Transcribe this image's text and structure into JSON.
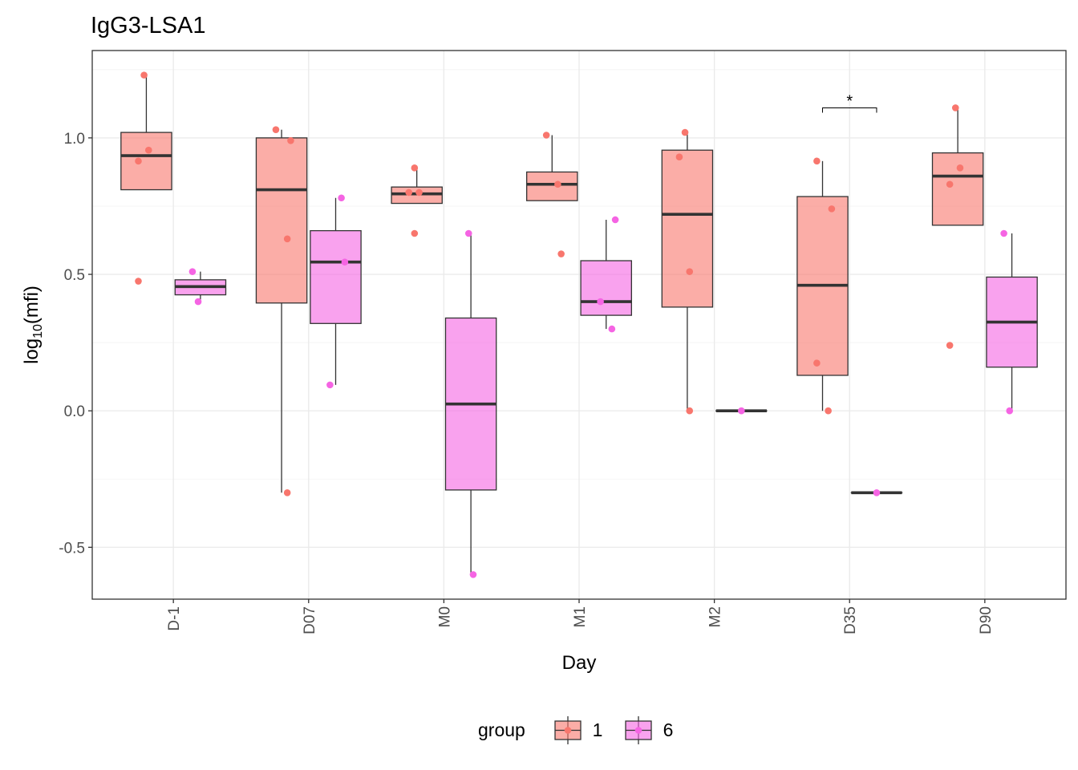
{
  "chart_data": {
    "type": "box",
    "title": "IgG3-LSA1",
    "xlabel": "Day",
    "ylabel": {
      "base": "log",
      "sub": "10",
      "arg": "(mfi)"
    },
    "categories": [
      "D-1",
      "D07",
      "M0",
      "M1",
      "M2",
      "D35",
      "D90"
    ],
    "y_ticks": [
      "-0.5",
      "0.0",
      "0.5",
      "1.0"
    ],
    "ylim": [
      -0.69,
      1.32
    ],
    "grid": true,
    "legend": {
      "title": "group",
      "position": "bottom"
    },
    "series": [
      {
        "name": "1",
        "fill": "#F8766D",
        "boxes": [
          {
            "category": "D-1",
            "lower_whisker": 0.81,
            "q1": 0.81,
            "median": 0.935,
            "q3": 1.02,
            "upper_whisker": 1.23,
            "points": [
              0.475,
              1.23,
              0.955,
              0.915
            ]
          },
          {
            "category": "D07",
            "lower_whisker": -0.3,
            "q1": 0.395,
            "median": 0.81,
            "q3": 1.0,
            "upper_whisker": 1.03,
            "points": [
              -0.3,
              0.99,
              1.03,
              0.63
            ]
          },
          {
            "category": "M0",
            "lower_whisker": 0.76,
            "q1": 0.76,
            "median": 0.795,
            "q3": 0.82,
            "upper_whisker": 0.89,
            "points": [
              0.65,
              0.8,
              0.8,
              0.89
            ]
          },
          {
            "category": "M1",
            "lower_whisker": 0.77,
            "q1": 0.77,
            "median": 0.83,
            "q3": 0.875,
            "upper_whisker": 1.01,
            "points": [
              0.575,
              1.01,
              0.83
            ]
          },
          {
            "category": "M2",
            "lower_whisker": 0.0,
            "q1": 0.38,
            "median": 0.72,
            "q3": 0.955,
            "upper_whisker": 1.02,
            "points": [
              0.0,
              0.93,
              1.02,
              0.51
            ]
          },
          {
            "category": "D35",
            "lower_whisker": 0.0,
            "q1": 0.13,
            "median": 0.46,
            "q3": 0.785,
            "upper_whisker": 0.915,
            "points": [
              0.175,
              0.0,
              0.74,
              0.915
            ]
          },
          {
            "category": "D90",
            "lower_whisker": 0.68,
            "q1": 0.68,
            "median": 0.86,
            "q3": 0.945,
            "upper_whisker": 1.11,
            "points": [
              0.24,
              1.11,
              0.89,
              0.83
            ]
          }
        ]
      },
      {
        "name": "6",
        "fill": "#F564E3",
        "boxes": [
          {
            "category": "D-1",
            "lower_whisker": 0.4,
            "q1": 0.425,
            "median": 0.455,
            "q3": 0.48,
            "upper_whisker": 0.51,
            "points": [
              0.51,
              0.4
            ]
          },
          {
            "category": "D07",
            "lower_whisker": 0.095,
            "q1": 0.32,
            "median": 0.545,
            "q3": 0.66,
            "upper_whisker": 0.78,
            "points": [
              0.78,
              0.545,
              0.095
            ]
          },
          {
            "category": "M0",
            "lower_whisker": -0.6,
            "q1": -0.29,
            "median": 0.025,
            "q3": 0.34,
            "upper_whisker": 0.65,
            "points": [
              0.65,
              -0.6
            ]
          },
          {
            "category": "M1",
            "lower_whisker": 0.3,
            "q1": 0.35,
            "median": 0.4,
            "q3": 0.55,
            "upper_whisker": 0.7,
            "points": [
              0.7,
              0.4,
              0.3
            ]
          },
          {
            "category": "M2",
            "lower_whisker": 0.0,
            "q1": 0.0,
            "median": 0.0,
            "q3": 0.0,
            "upper_whisker": 0.0,
            "points": [
              0.0
            ]
          },
          {
            "category": "D35",
            "lower_whisker": -0.3,
            "q1": -0.3,
            "median": -0.3,
            "q3": -0.3,
            "upper_whisker": -0.3,
            "points": [
              -0.3
            ]
          },
          {
            "category": "D90",
            "lower_whisker": 0.0,
            "q1": 0.16,
            "median": 0.325,
            "q3": 0.49,
            "upper_whisker": 0.65,
            "points": [
              0.65,
              0.0
            ]
          }
        ]
      }
    ],
    "annotations": [
      {
        "text": "*",
        "category": "D35",
        "y": 1.11
      }
    ]
  }
}
